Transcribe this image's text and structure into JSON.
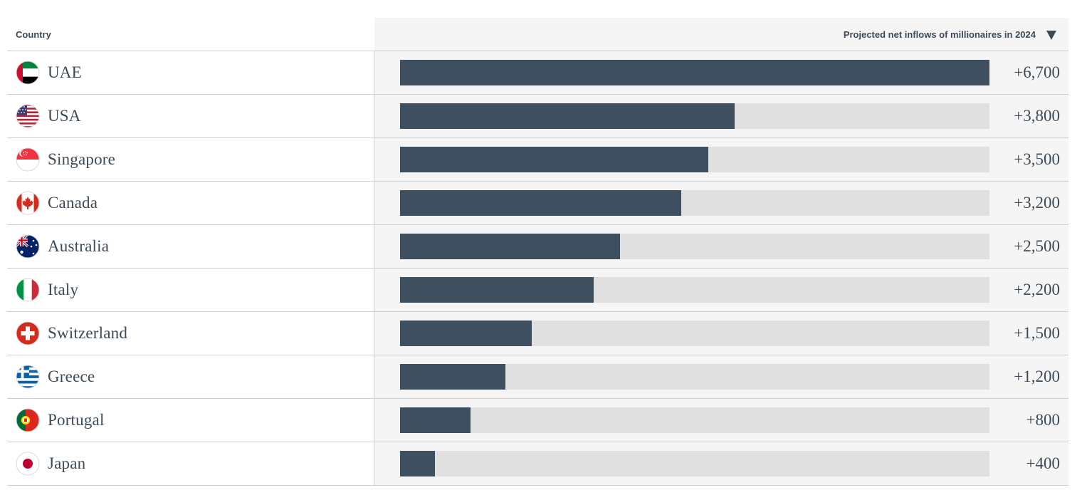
{
  "header": {
    "country_label": "Country",
    "value_label": "Projected net inflows of millionaires in 2024",
    "sort_icon": "caret-down-icon"
  },
  "colors": {
    "bar": "#3e5060",
    "track": "#e0e0e1",
    "text": "#3d4a55"
  },
  "chart_data": {
    "type": "bar",
    "orientation": "horizontal",
    "categories": [
      "UAE",
      "USA",
      "Singapore",
      "Canada",
      "Australia",
      "Italy",
      "Switzerland",
      "Greece",
      "Portugal",
      "Japan"
    ],
    "values": [
      6700,
      3800,
      3500,
      3200,
      2500,
      2200,
      1500,
      1200,
      800,
      400
    ],
    "value_labels": [
      "+6,700",
      "+3,800",
      "+3,500",
      "+3,200",
      "+2,500",
      "+2,200",
      "+1,500",
      "+1,200",
      "+800",
      "+400"
    ],
    "xlim": [
      0,
      6700
    ],
    "xlabel": "Projected net inflows of millionaires in 2024",
    "ylabel": "Country",
    "grid": false
  },
  "rows": [
    {
      "country": "UAE",
      "flag": "uae-flag-icon",
      "value_label": "+6,700"
    },
    {
      "country": "USA",
      "flag": "usa-flag-icon",
      "value_label": "+3,800"
    },
    {
      "country": "Singapore",
      "flag": "singapore-flag-icon",
      "value_label": "+3,500"
    },
    {
      "country": "Canada",
      "flag": "canada-flag-icon",
      "value_label": "+3,200"
    },
    {
      "country": "Australia",
      "flag": "australia-flag-icon",
      "value_label": "+2,500"
    },
    {
      "country": "Italy",
      "flag": "italy-flag-icon",
      "value_label": "+2,200"
    },
    {
      "country": "Switzerland",
      "flag": "switzerland-flag-icon",
      "value_label": "+1,500"
    },
    {
      "country": "Greece",
      "flag": "greece-flag-icon",
      "value_label": "+1,200"
    },
    {
      "country": "Portugal",
      "flag": "portugal-flag-icon",
      "value_label": "+800"
    },
    {
      "country": "Japan",
      "flag": "japan-flag-icon",
      "value_label": "+400"
    }
  ]
}
